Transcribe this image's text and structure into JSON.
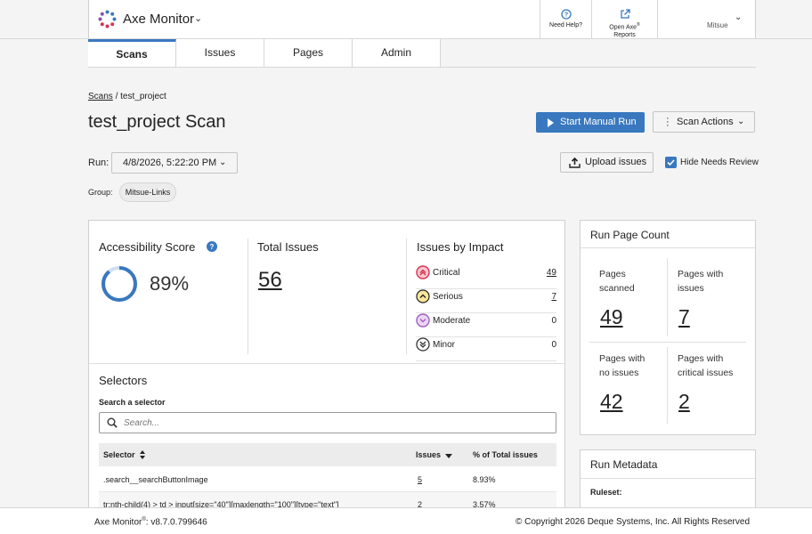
{
  "header": {
    "app_title": "Axe Monitor",
    "help_label": "Need Help?",
    "reports_label_line1": "Open Axe",
    "reports_label_sup": "®",
    "reports_label_line2": "Reports",
    "user_name": "Mitsue"
  },
  "tabs": [
    {
      "label": "Scans",
      "active": true
    },
    {
      "label": "Issues",
      "active": false
    },
    {
      "label": "Pages",
      "active": false
    },
    {
      "label": "Admin",
      "active": false
    }
  ],
  "breadcrumb": {
    "root": "Scans",
    "separator": "/",
    "current": "test_project"
  },
  "page_title": "test_project Scan",
  "actions": {
    "start_manual_run": "Start Manual Run",
    "scan_actions": "Scan Actions",
    "upload_issues": "Upload issues",
    "hide_needs_review": "Hide Needs Review",
    "hide_needs_review_checked": true
  },
  "run": {
    "label": "Run:",
    "selected": "4/8/2026, 5:22:20 PM"
  },
  "group": {
    "label": "Group:",
    "value": "Mitsue-Links"
  },
  "summary": {
    "accessibility_score_title": "Accessibility Score",
    "accessibility_score": "89%",
    "accessibility_score_fraction": 0.89,
    "total_issues_title": "Total Issues",
    "total_issues": "56",
    "impact_title": "Issues by Impact",
    "impact": [
      {
        "label": "Critical",
        "count": "49",
        "linked": true,
        "color": "#d93251"
      },
      {
        "label": "Serious",
        "count": "7",
        "linked": true,
        "color": "#f2b705"
      },
      {
        "label": "Moderate",
        "count": "0",
        "linked": false,
        "color": "#a05fc2"
      },
      {
        "label": "Minor",
        "count": "0",
        "linked": false,
        "color": "#333333"
      }
    ]
  },
  "selectors": {
    "title": "Selectors",
    "search_label": "Search a selector",
    "search_placeholder": "Search...",
    "columns": [
      "Selector",
      "Issues",
      "% of Total issues"
    ],
    "rows": [
      {
        "selector": ".search__searchButtonImage",
        "issues": "5",
        "percent": "8.93%"
      },
      {
        "selector": "tr:nth-child(4) > td > input[size=\"40\"][maxlength=\"100\"][type=\"text\"]",
        "issues": "2",
        "percent": "3.57%"
      }
    ]
  },
  "run_page_count": {
    "title": "Run Page Count",
    "cells": [
      {
        "label_line1": "Pages",
        "label_line2": "scanned",
        "value": "49"
      },
      {
        "label_line1": "Pages with",
        "label_line2": "issues",
        "value": "7"
      },
      {
        "label_line1": "Pages with",
        "label_line2": "no issues",
        "value": "42"
      },
      {
        "label_line1": "Pages with",
        "label_line2": "critical issues",
        "value": "2"
      }
    ]
  },
  "run_metadata": {
    "title": "Run Metadata",
    "ruleset_label": "Ruleset:"
  },
  "footer": {
    "version_prefix": "Axe Monitor",
    "version_sup": "®",
    "version_suffix": ": v8.7.0.799646",
    "copyright": "© Copyright 2026 Deque Systems, Inc. All Rights Reserved"
  },
  "colors": {
    "accent": "#3978bf"
  }
}
